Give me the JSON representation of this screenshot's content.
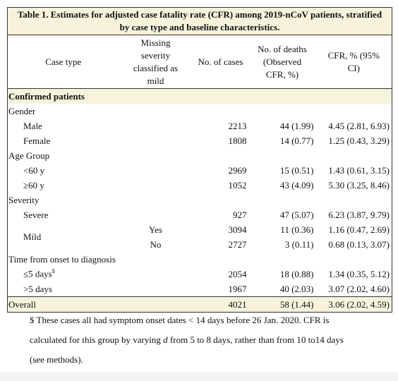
{
  "table": {
    "title": "Table 1. Estimates for adjusted case fatality rate (CFR) among 2019-nCoV patients, stratified by case type and baseline characteristics.",
    "header": [
      "Case type",
      "Missing severity classified as mild",
      "No. of cases",
      "No. of deaths (Observed CFR, %)",
      "CFR, % (95% CI)"
    ],
    "rows": [
      [
        "Confirmed patients"
      ],
      [
        "Gender"
      ],
      [
        "Male",
        2213,
        "44 (1.99)",
        "4.45 (2.81, 6.93)"
      ],
      [
        "Female",
        1808,
        "14 (0.77)",
        "1.25 (0.43, 3.29)"
      ],
      [
        "Age Group"
      ],
      [
        "<60 y",
        2969,
        "15 (0.51)",
        "1.43 (0.61, 3.15)"
      ],
      [
        "≥60 y",
        1052,
        "43 (4.09)",
        "5.30 (3.25, 8.46)"
      ],
      [
        "Severity"
      ],
      [
        "Severe",
        927,
        "47 (5.07)",
        "6.23 (3.87, 9.79)"
      ],
      [
        "Mild",
        "Yes",
        3094,
        "11 (0.36)",
        "1.16 (0.47, 2.69)"
      ],
      [
        "No",
        2727,
        "3 (0.11)",
        "0.68 (0.13, 3.07)"
      ],
      [
        "Time from onset to diagnosis"
      ],
      [
        "≤5 days",
        2054,
        "18 (0.88)",
        "1.34 (0.35, 5.12)"
      ],
      [
        ">5 days",
        1967,
        "40 (2.03)",
        "3.07 (2.02, 4.60)"
      ],
      [
        "Overall",
        4021,
        "58 (1.44)",
        "3.06 (2.02, 4.59)"
      ]
    ]
  },
  "footnote": {
    "marker": "$",
    "lines": [
      "$ These cases all had symptom onset dates < 14 days before 26 Jan. 2020. CFR is",
      [
        "calculated for this group by varying ",
        "d",
        " from 5 to 8 days, rather than from 10 to14 days"
      ],
      "(see methods)."
    ]
  }
}
